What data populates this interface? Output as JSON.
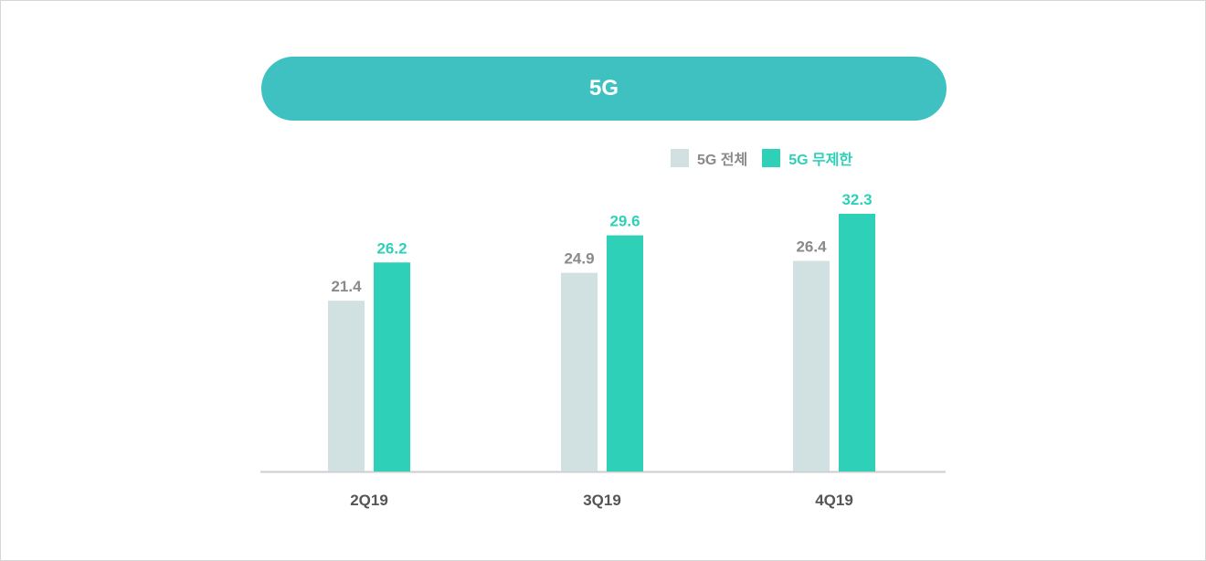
{
  "colors": {
    "title_bg": "#40c1c1",
    "total": "#d1e0e0",
    "unlimited": "#2ed1b7",
    "total_label": "#8a8a8a",
    "unlimited_label": "#2ed1b7",
    "axis": "#cccccc",
    "category_label": "#555555"
  },
  "chart_data": {
    "type": "bar",
    "title": "5G",
    "categories": [
      "2Q19",
      "3Q19",
      "4Q19"
    ],
    "series": [
      {
        "name": "5G 전체",
        "values": [
          21.4,
          24.9,
          26.4
        ]
      },
      {
        "name": "5G 무제한",
        "values": [
          26.2,
          29.6,
          32.3
        ]
      }
    ],
    "legend": "top-right",
    "grid": false,
    "ylim": [
      0,
      32.3
    ]
  }
}
